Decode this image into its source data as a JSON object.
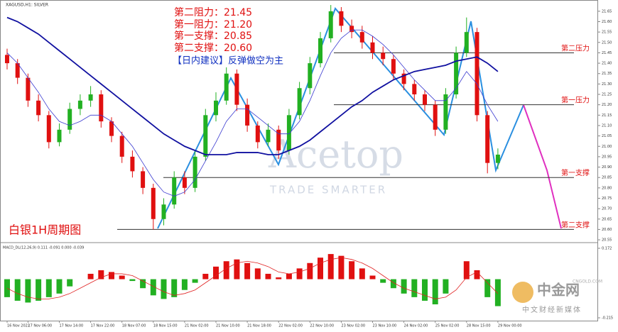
{
  "header": {
    "symbol": "XAGUSD,H1: SILVER",
    "levels": [
      "第二阻力：21.45",
      "第一阻力：21.20",
      "第一支撑：20.85",
      "第二支撑：20.60"
    ],
    "advice": "【日内建议】反弹做空为主",
    "title": "白银1H周期图"
  },
  "watermark": {
    "brand": "Acetop",
    "slogan": "TRADE SMARTER"
  },
  "logo": {
    "name": "中金网",
    "site": "CNGOLD.COM",
    "tagline": "中文财经新媒体"
  },
  "chart_data": {
    "type": "candlestick",
    "categories": [
      "16 Nov 2022",
      null,
      "17 Nov 06:00",
      null,
      null,
      "17 Nov 14:00",
      null,
      null,
      "17 Nov 22:00",
      null,
      null,
      "18 Nov 07:00",
      null,
      null,
      "18 Nov 15:00",
      null,
      null,
      "21 Nov 02:00",
      null,
      null,
      "21 Nov 10:00",
      null,
      null,
      "21 Nov 18:00",
      null,
      null,
      "22 Nov 02:00",
      null,
      null,
      "22 Nov 10:00",
      null,
      null,
      "23 Nov 02:00",
      null,
      null,
      "23 Nov 10:00",
      null,
      null,
      "24 Nov 02:00",
      null,
      null,
      "25 Nov 02:00",
      null,
      null,
      "28 Nov 15:00",
      null,
      null,
      "29 Nov 00:00"
    ],
    "ohlc": [
      [
        21.44,
        21.47,
        21.37,
        21.4
      ],
      [
        21.4,
        21.42,
        21.3,
        21.33
      ],
      [
        21.33,
        21.35,
        21.19,
        21.22
      ],
      [
        21.22,
        21.25,
        21.12,
        21.15
      ],
      [
        21.15,
        21.17,
        20.99,
        21.02
      ],
      [
        21.02,
        21.11,
        21.0,
        21.08
      ],
      [
        21.08,
        21.21,
        21.06,
        21.18
      ],
      [
        21.18,
        21.25,
        21.15,
        21.22
      ],
      [
        21.22,
        21.29,
        21.19,
        21.25
      ],
      [
        21.25,
        21.27,
        21.09,
        21.12
      ],
      [
        21.12,
        21.14,
        21.02,
        21.05
      ],
      [
        21.05,
        21.07,
        20.92,
        20.95
      ],
      [
        20.95,
        20.98,
        20.85,
        20.88
      ],
      [
        20.88,
        20.9,
        20.77,
        20.8
      ],
      [
        20.8,
        20.82,
        20.6,
        20.65
      ],
      [
        20.65,
        20.75,
        20.62,
        20.72
      ],
      [
        20.72,
        20.88,
        20.7,
        20.85
      ],
      [
        20.85,
        20.88,
        20.77,
        20.8
      ],
      [
        20.8,
        20.98,
        20.78,
        20.95
      ],
      [
        20.95,
        21.18,
        20.93,
        21.15
      ],
      [
        21.15,
        21.26,
        21.12,
        21.22
      ],
      [
        21.22,
        21.38,
        21.2,
        21.35
      ],
      [
        21.35,
        21.37,
        21.17,
        21.2
      ],
      [
        21.2,
        21.23,
        21.07,
        21.1
      ],
      [
        21.1,
        21.12,
        20.99,
        21.02
      ],
      [
        21.02,
        21.11,
        21.0,
        21.08
      ],
      [
        21.08,
        21.1,
        20.94,
        20.98
      ],
      [
        20.98,
        21.18,
        20.96,
        21.15
      ],
      [
        21.15,
        21.31,
        21.13,
        21.28
      ],
      [
        21.28,
        21.43,
        21.25,
        21.4
      ],
      [
        21.4,
        21.55,
        21.38,
        21.52
      ],
      [
        21.52,
        21.68,
        21.5,
        21.65
      ],
      [
        21.65,
        21.67,
        21.55,
        21.58
      ],
      [
        21.58,
        21.61,
        21.52,
        21.55
      ],
      [
        21.55,
        21.58,
        21.47,
        21.5
      ],
      [
        21.5,
        21.53,
        21.42,
        21.45
      ],
      [
        21.45,
        21.48,
        21.39,
        21.42
      ],
      [
        21.42,
        21.44,
        21.32,
        21.35
      ],
      [
        21.35,
        21.37,
        21.27,
        21.3
      ],
      [
        21.3,
        21.32,
        21.22,
        21.25
      ],
      [
        21.25,
        21.27,
        21.17,
        21.2
      ],
      [
        21.2,
        21.22,
        21.05,
        21.08
      ],
      [
        21.08,
        21.28,
        21.06,
        21.25
      ],
      [
        21.25,
        21.48,
        21.23,
        21.45
      ],
      [
        21.45,
        21.62,
        21.43,
        21.55
      ],
      [
        21.55,
        21.57,
        21.12,
        21.15
      ],
      [
        21.15,
        21.17,
        20.87,
        20.92
      ],
      [
        20.92,
        20.99,
        20.89,
        20.96
      ]
    ],
    "up_color": "#22b022",
    "down_color": "#e01010",
    "ma_slow": {
      "color": "#1010a0",
      "values": [
        21.62,
        21.6,
        21.57,
        21.54,
        21.5,
        21.46,
        21.42,
        21.38,
        21.34,
        21.3,
        21.26,
        21.22,
        21.18,
        21.14,
        21.1,
        21.06,
        21.03,
        21.0,
        20.98,
        20.96,
        20.96,
        20.96,
        20.97,
        20.97,
        20.97,
        20.96,
        20.96,
        20.98,
        21.0,
        21.03,
        21.07,
        21.11,
        21.15,
        21.19,
        21.22,
        21.26,
        21.29,
        21.32,
        21.34,
        21.36,
        21.37,
        21.38,
        21.39,
        21.41,
        21.42,
        21.43,
        21.4,
        21.36
      ]
    },
    "ma_fast": {
      "color": "#3a3ad0",
      "values": [
        21.45,
        21.4,
        21.33,
        21.26,
        21.18,
        21.12,
        21.1,
        21.12,
        21.15,
        21.15,
        21.12,
        21.06,
        21.0,
        20.92,
        20.84,
        20.78,
        20.76,
        20.78,
        20.84,
        20.93,
        21.02,
        21.12,
        21.18,
        21.18,
        21.14,
        21.1,
        21.06,
        21.06,
        21.12,
        21.22,
        21.34,
        21.45,
        21.52,
        21.56,
        21.56,
        21.53,
        21.49,
        21.44,
        21.38,
        21.32,
        21.27,
        21.22,
        21.22,
        21.28,
        21.36,
        21.3,
        21.2,
        21.12
      ]
    },
    "levels": [
      {
        "value": 21.45,
        "label": "第二压力"
      },
      {
        "value": 21.2,
        "label": "第一压力"
      },
      {
        "value": 20.85,
        "label": "第一支撑"
      },
      {
        "value": 20.6,
        "label": "第二支撑"
      }
    ],
    "ylim": [
      20.54,
      21.67
    ],
    "yticks": [
      21.65,
      {
        "value": 21.6,
        "label": "21.60"
      },
      21.55,
      {
        "value": 21.5,
        "label": "21.50"
      },
      21.45,
      {
        "value": 21.4,
        "label": "21.40"
      },
      21.35,
      {
        "value": 21.3,
        "label": "21.30"
      },
      21.25,
      {
        "value": 21.2,
        "label": "21.20"
      },
      21.15,
      {
        "value": 21.1,
        "label": "21.10"
      },
      21.05,
      {
        "value": 21.0,
        "label": "21.00"
      },
      20.95,
      {
        "value": 20.9,
        "label": "20.90"
      },
      20.85,
      {
        "value": 20.8,
        "label": "20.80"
      },
      20.75,
      {
        "value": 20.7,
        "label": "20.70"
      },
      20.65,
      {
        "value": 20.6,
        "label": "20.60"
      },
      20.55
    ],
    "macd": {
      "label": "MACD_DL(12,26,9) 0.111 -0.091 0.000 -0.039",
      "histogram": [
        -0.1,
        -0.12,
        -0.13,
        -0.12,
        -0.1,
        -0.08,
        -0.04,
        0.0,
        0.03,
        0.05,
        0.04,
        0.02,
        -0.01,
        -0.05,
        -0.09,
        -0.11,
        -0.1,
        -0.06,
        -0.02,
        0.03,
        0.07,
        0.1,
        0.11,
        0.09,
        0.06,
        0.03,
        0.01,
        0.03,
        0.06,
        0.09,
        0.12,
        0.14,
        0.13,
        0.1,
        0.06,
        0.02,
        -0.02,
        -0.05,
        -0.08,
        -0.1,
        -0.12,
        -0.14,
        -0.08,
        0.0,
        0.1,
        0.05,
        -0.1,
        -0.15
      ],
      "signal": [
        -0.05,
        -0.08,
        -0.1,
        -0.11,
        -0.11,
        -0.1,
        -0.08,
        -0.05,
        -0.02,
        0.01,
        0.03,
        0.03,
        0.02,
        -0.01,
        -0.04,
        -0.07,
        -0.09,
        -0.08,
        -0.06,
        -0.02,
        0.02,
        0.06,
        0.09,
        0.1,
        0.09,
        0.07,
        0.04,
        0.03,
        0.04,
        0.06,
        0.09,
        0.11,
        0.12,
        0.11,
        0.09,
        0.06,
        0.02,
        -0.02,
        -0.05,
        -0.07,
        -0.09,
        -0.11,
        -0.1,
        -0.06,
        0.01,
        0.04,
        -0.02,
        -0.08
      ],
      "signal_color": "#e02020",
      "ylim": [
        -0.215,
        0.172
      ],
      "yticks": [
        0.172,
        -0.215
      ]
    }
  }
}
